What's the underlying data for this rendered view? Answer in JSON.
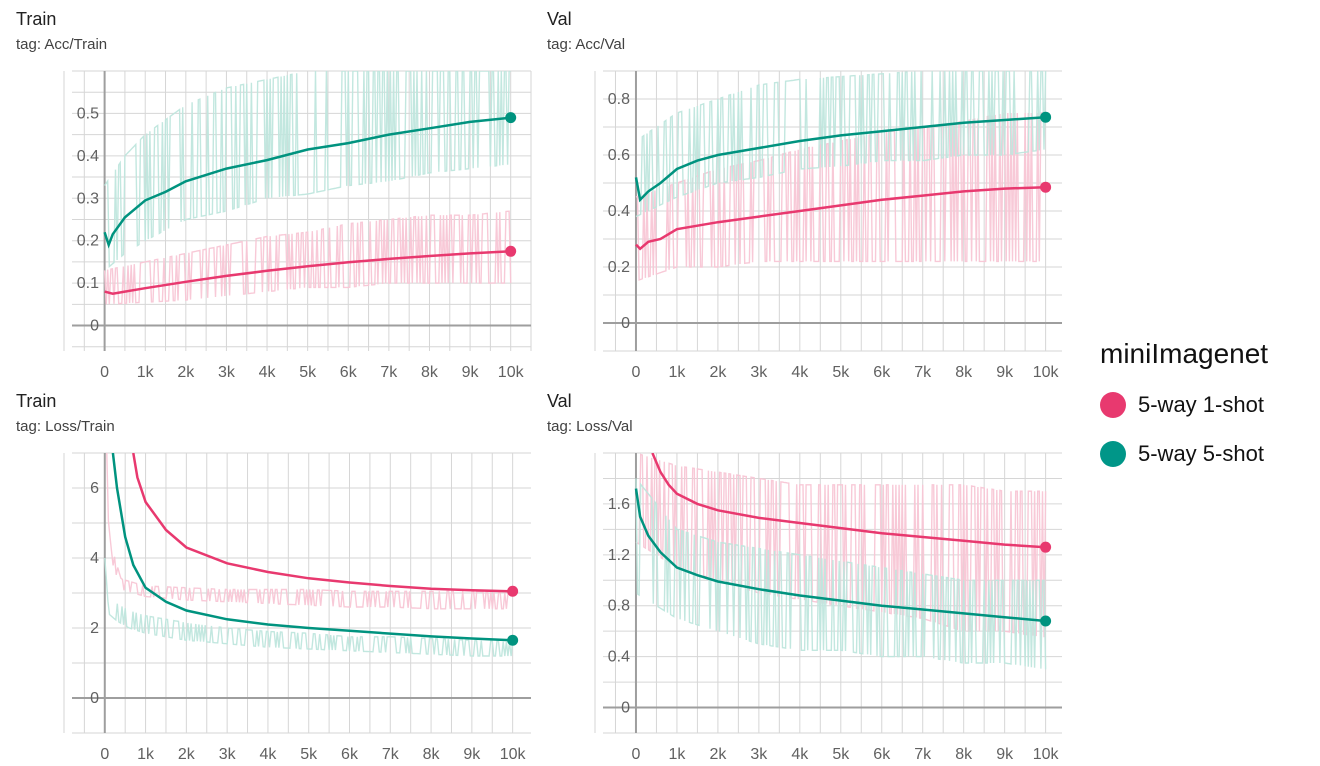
{
  "legend": {
    "title": "miniImagenet",
    "items": [
      {
        "label": "5-way 1-shot",
        "color": "#e8396f"
      },
      {
        "label": "5-way 5-shot",
        "color": "#009688"
      }
    ]
  },
  "colors": {
    "pink_line": "#e8396f",
    "pink_band": "#f8c6d5",
    "teal_line": "#00937f",
    "teal_band": "#bfe6dd",
    "grid": "#d6d6d6",
    "axis": "#9e9e9e"
  },
  "chart_data": [
    {
      "type": "line",
      "title": "Train",
      "tag": "tag: Acc/Train",
      "x_ticks": [
        0,
        1000,
        2000,
        3000,
        4000,
        5000,
        6000,
        7000,
        8000,
        9000,
        10000
      ],
      "x_tick_labels": [
        "0",
        "1k",
        "2k",
        "3k",
        "4k",
        "5k",
        "6k",
        "7k",
        "8k",
        "9k",
        "10k"
      ],
      "y_ticks": [
        0,
        0.1,
        0.2,
        0.3,
        0.4,
        0.5
      ],
      "y_tick_labels": [
        "0",
        "0.1",
        "0.2",
        "0.3",
        "0.4",
        "0.5"
      ],
      "xlim": [
        -1000,
        10500
      ],
      "ylim": [
        -0.06,
        0.6
      ],
      "grid": true,
      "series": [
        {
          "name": "5-way 1-shot",
          "smoothed": {
            "x": [
              0,
              200,
              500,
              1000,
              2000,
              3000,
              4000,
              5000,
              6000,
              7000,
              8000,
              9000,
              10000
            ],
            "y": [
              0.08,
              0.075,
              0.08,
              0.088,
              0.103,
              0.117,
              0.129,
              0.14,
              0.149,
              0.157,
              0.164,
              0.17,
              0.175
            ]
          },
          "raw_band": {
            "x": [
              0,
              1000,
              2000,
              3000,
              4000,
              5000,
              6000,
              7000,
              8000,
              9000,
              10000
            ],
            "lower": [
              0.05,
              0.055,
              0.06,
              0.07,
              0.08,
              0.09,
              0.09,
              0.1,
              0.1,
              0.1,
              0.1
            ],
            "upper": [
              0.13,
              0.15,
              0.17,
              0.19,
              0.21,
              0.22,
              0.24,
              0.25,
              0.26,
              0.26,
              0.27
            ]
          }
        },
        {
          "name": "5-way 5-shot",
          "smoothed": {
            "x": [
              0,
              100,
              200,
              500,
              1000,
              1500,
              2000,
              3000,
              4000,
              5000,
              6000,
              7000,
              8000,
              9000,
              10000
            ],
            "y": [
              0.22,
              0.19,
              0.215,
              0.255,
              0.295,
              0.315,
              0.34,
              0.37,
              0.39,
              0.415,
              0.43,
              0.45,
              0.465,
              0.48,
              0.49
            ]
          },
          "raw_band": {
            "x": [
              0,
              500,
              1000,
              2000,
              3000,
              4000,
              5000,
              6000,
              7000,
              8000,
              9000,
              10000
            ],
            "lower": [
              0.13,
              0.17,
              0.2,
              0.25,
              0.27,
              0.3,
              0.31,
              0.33,
              0.34,
              0.36,
              0.37,
              0.38
            ],
            "upper": [
              0.33,
              0.4,
              0.45,
              0.52,
              0.56,
              0.58,
              0.6,
              0.6,
              0.6,
              0.6,
              0.6,
              0.6
            ]
          }
        }
      ]
    },
    {
      "type": "line",
      "title": "Val",
      "tag": "tag: Acc/Val",
      "x_ticks": [
        0,
        1000,
        2000,
        3000,
        4000,
        5000,
        6000,
        7000,
        8000,
        9000,
        10000
      ],
      "x_tick_labels": [
        "0",
        "1k",
        "2k",
        "3k",
        "4k",
        "5k",
        "6k",
        "7k",
        "8k",
        "9k",
        "10k"
      ],
      "y_ticks": [
        0,
        0.2,
        0.4,
        0.6,
        0.8
      ],
      "y_tick_labels": [
        "0",
        "0.2",
        "0.4",
        "0.6",
        "0.8"
      ],
      "xlim": [
        -1000,
        10400
      ],
      "ylim": [
        -0.1,
        0.9
      ],
      "grid": true,
      "series": [
        {
          "name": "5-way 1-shot",
          "smoothed": {
            "x": [
              0,
              100,
              300,
              600,
              1000,
              2000,
              3000,
              4000,
              5000,
              6000,
              7000,
              8000,
              9000,
              10000
            ],
            "y": [
              0.28,
              0.265,
              0.29,
              0.3,
              0.335,
              0.36,
              0.38,
              0.4,
              0.42,
              0.44,
              0.455,
              0.47,
              0.48,
              0.485
            ]
          },
          "raw_band": {
            "x": [
              0,
              1000,
              2000,
              3000,
              4000,
              5000,
              6000,
              7000,
              8000,
              9000,
              10000
            ],
            "lower": [
              0.15,
              0.2,
              0.2,
              0.22,
              0.22,
              0.22,
              0.22,
              0.22,
              0.22,
              0.22,
              0.22
            ],
            "upper": [
              0.45,
              0.5,
              0.55,
              0.58,
              0.62,
              0.65,
              0.68,
              0.7,
              0.72,
              0.75,
              0.75
            ]
          }
        },
        {
          "name": "5-way 5-shot",
          "smoothed": {
            "x": [
              0,
              100,
              300,
              600,
              1000,
              1500,
              2000,
              3000,
              4000,
              5000,
              6000,
              7000,
              8000,
              9000,
              10000
            ],
            "y": [
              0.52,
              0.44,
              0.47,
              0.5,
              0.55,
              0.58,
              0.6,
              0.625,
              0.65,
              0.67,
              0.685,
              0.7,
              0.715,
              0.725,
              0.735
            ]
          },
          "raw_band": {
            "x": [
              0,
              1000,
              2000,
              3000,
              4000,
              5000,
              6000,
              7000,
              8000,
              9000,
              10000
            ],
            "lower": [
              0.38,
              0.45,
              0.5,
              0.52,
              0.55,
              0.56,
              0.58,
              0.58,
              0.6,
              0.6,
              0.62
            ],
            "upper": [
              0.65,
              0.75,
              0.8,
              0.85,
              0.87,
              0.88,
              0.89,
              0.9,
              0.9,
              0.9,
              0.9
            ]
          }
        }
      ]
    },
    {
      "type": "line",
      "title": "Train",
      "tag": "tag: Loss/Train",
      "x_ticks": [
        0,
        1000,
        2000,
        3000,
        4000,
        5000,
        6000,
        7000,
        8000,
        9000,
        10000
      ],
      "x_tick_labels": [
        "0",
        "1k",
        "2k",
        "3k",
        "4k",
        "5k",
        "6k",
        "7k",
        "8k",
        "9k",
        "10k"
      ],
      "y_ticks": [
        0,
        2,
        4,
        6
      ],
      "y_tick_labels": [
        "0",
        "2",
        "4",
        "6"
      ],
      "xlim": [
        -1000,
        10450
      ],
      "ylim": [
        -1.0,
        7.0
      ],
      "grid": true,
      "series": [
        {
          "name": "5-way 1-shot",
          "smoothed": {
            "x": [
              700,
              800,
              1000,
              1500,
              2000,
              3000,
              4000,
              5000,
              6000,
              7000,
              8000,
              9000,
              10000
            ],
            "y": [
              7.0,
              6.3,
              5.6,
              4.8,
              4.3,
              3.85,
              3.6,
              3.42,
              3.3,
              3.2,
              3.12,
              3.08,
              3.05
            ]
          },
          "raw_band": {
            "x": [
              50,
              200,
              400,
              700,
              1000,
              2000,
              3000,
              4000,
              5000,
              6000,
              7000,
              8000,
              9000,
              10000
            ],
            "lower": [
              5.5,
              3.8,
              3.1,
              3.0,
              2.9,
              2.8,
              2.75,
              2.7,
              2.65,
              2.6,
              2.6,
              2.55,
              2.55,
              2.55
            ],
            "upper": [
              7.0,
              4.2,
              3.4,
              3.3,
              3.2,
              3.15,
              3.1,
              3.1,
              3.1,
              3.05,
              3.05,
              3.05,
              3.05,
              3.0
            ]
          }
        },
        {
          "name": "5-way 5-shot",
          "smoothed": {
            "x": [
              200,
              300,
              500,
              700,
              1000,
              1500,
              2000,
              3000,
              4000,
              5000,
              6000,
              7000,
              8000,
              9000,
              10000
            ],
            "y": [
              7.0,
              6.0,
              4.6,
              3.8,
              3.15,
              2.75,
              2.5,
              2.25,
              2.1,
              2.0,
              1.92,
              1.84,
              1.76,
              1.7,
              1.65
            ]
          },
          "raw_band": {
            "x": [
              0,
              100,
              300,
              600,
              1000,
              2000,
              3000,
              4000,
              5000,
              6000,
              7000,
              8000,
              9000,
              10000
            ],
            "lower": [
              4.0,
              2.4,
              2.2,
              2.0,
              1.85,
              1.65,
              1.55,
              1.45,
              1.4,
              1.35,
              1.3,
              1.25,
              1.2,
              1.2
            ],
            "upper": [
              7.0,
              2.9,
              2.7,
              2.5,
              2.35,
              2.15,
              2.0,
              1.9,
              1.85,
              1.75,
              1.75,
              1.7,
              1.65,
              1.6
            ]
          }
        }
      ]
    },
    {
      "type": "line",
      "title": "Val",
      "tag": "tag: Loss/Val",
      "x_ticks": [
        0,
        1000,
        2000,
        3000,
        4000,
        5000,
        6000,
        7000,
        8000,
        9000,
        10000
      ],
      "x_tick_labels": [
        "0",
        "1k",
        "2k",
        "3k",
        "4k",
        "5k",
        "6k",
        "7k",
        "8k",
        "9k",
        "10k"
      ],
      "y_ticks": [
        0,
        0.4,
        0.8,
        1.2,
        1.6
      ],
      "y_tick_labels": [
        "0",
        "0.4",
        "0.8",
        "1.2",
        "1.6"
      ],
      "xlim": [
        -1000,
        10400
      ],
      "ylim": [
        -0.2,
        2.0
      ],
      "grid": true,
      "series": [
        {
          "name": "5-way 1-shot",
          "smoothed": {
            "x": [
              400,
              600,
              800,
              1000,
              1500,
              2000,
              3000,
              4000,
              5000,
              6000,
              7000,
              8000,
              9000,
              10000
            ],
            "y": [
              2.0,
              1.85,
              1.75,
              1.68,
              1.6,
              1.55,
              1.49,
              1.45,
              1.41,
              1.37,
              1.34,
              1.31,
              1.28,
              1.26
            ]
          },
          "raw_band": {
            "x": [
              0,
              1000,
              2000,
              3000,
              4000,
              5000,
              6000,
              7000,
              8000,
              9000,
              10000
            ],
            "lower": [
              1.3,
              1.1,
              1.0,
              0.9,
              0.85,
              0.8,
              0.75,
              0.7,
              0.6,
              0.6,
              0.55
            ],
            "upper": [
              2.0,
              1.9,
              1.85,
              1.8,
              1.75,
              1.75,
              1.75,
              1.75,
              1.75,
              1.7,
              1.7
            ]
          }
        },
        {
          "name": "5-way 5-shot",
          "smoothed": {
            "x": [
              0,
              100,
              300,
              600,
              1000,
              1500,
              2000,
              3000,
              4000,
              5000,
              6000,
              7000,
              8000,
              9000,
              10000
            ],
            "y": [
              1.72,
              1.5,
              1.35,
              1.22,
              1.1,
              1.04,
              0.99,
              0.93,
              0.88,
              0.84,
              0.8,
              0.77,
              0.74,
              0.71,
              0.68
            ]
          },
          "raw_band": {
            "x": [
              0,
              1000,
              2000,
              3000,
              4000,
              5000,
              6000,
              7000,
              8000,
              9000,
              10000
            ],
            "lower": [
              0.9,
              0.7,
              0.6,
              0.5,
              0.45,
              0.45,
              0.4,
              0.4,
              0.35,
              0.35,
              0.3
            ],
            "upper": [
              1.8,
              1.4,
              1.3,
              1.25,
              1.2,
              1.15,
              1.1,
              1.05,
              1.0,
              1.0,
              1.0
            ]
          }
        }
      ]
    }
  ]
}
